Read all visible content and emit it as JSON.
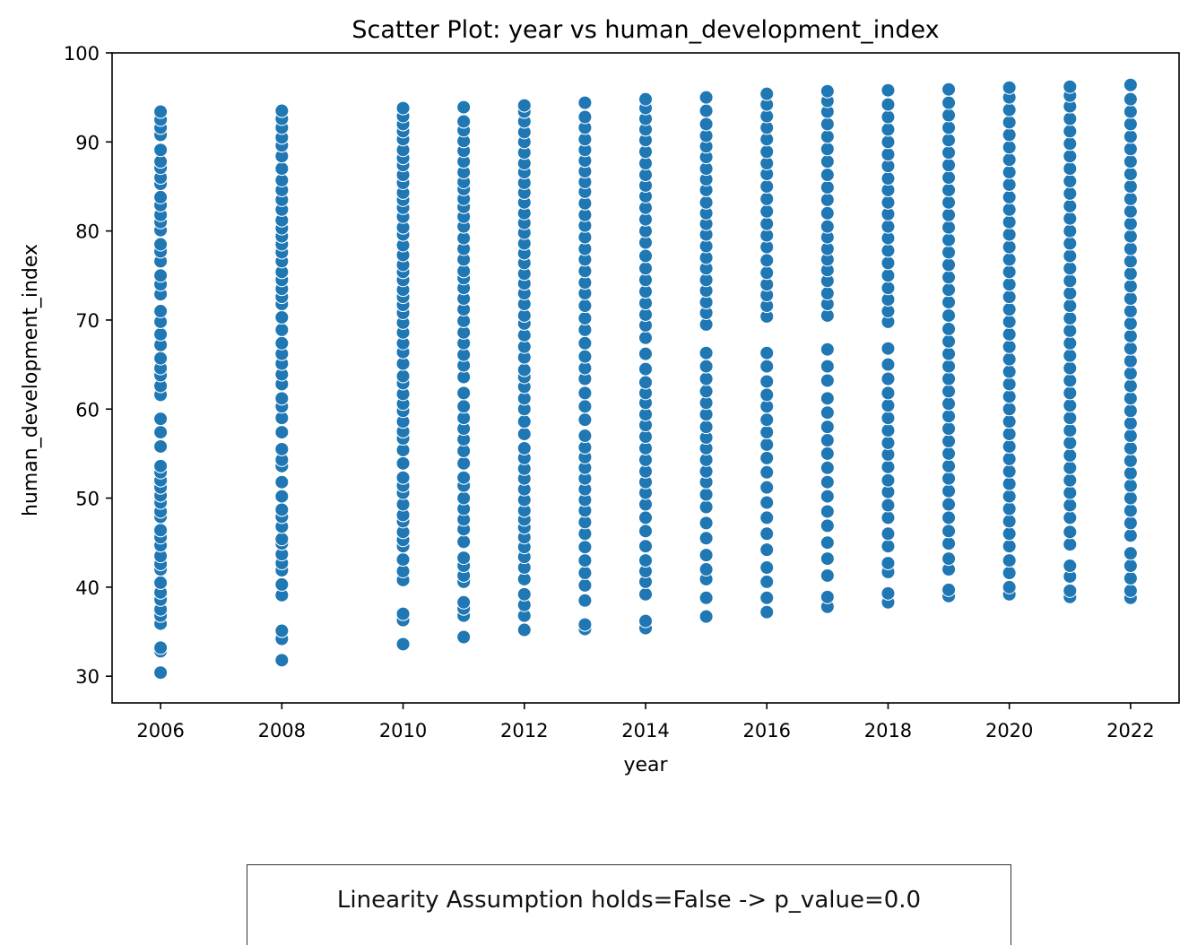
{
  "colors": {
    "point": "#1f77b4",
    "point_edge": "#ffffff",
    "axis": "#000000",
    "text": "#000000"
  },
  "chart_data": {
    "type": "scatter",
    "title": "Scatter Plot: year vs human_development_index",
    "xlabel": "year",
    "ylabel": "human_development_index",
    "xlim": [
      2005.2,
      2022.8
    ],
    "ylim": [
      27,
      100
    ],
    "xticks": [
      2006,
      2008,
      2010,
      2012,
      2014,
      2016,
      2018,
      2020,
      2022
    ],
    "yticks": [
      30,
      40,
      50,
      60,
      70,
      80,
      90,
      100
    ],
    "grid": false,
    "legend": "none",
    "series": [
      {
        "points_by_year": [
          {
            "x": 2006,
            "y": [
              30.4,
              32.8,
              33.2,
              35.9,
              36.8,
              37.5,
              38.6,
              39.4,
              40.5,
              42.0,
              42.6,
              43.5,
              44.7,
              45.6,
              46.4,
              47.9,
              48.5,
              49.5,
              50.3,
              51.2,
              52.0,
              52.9,
              53.6,
              55.8,
              57.4,
              58.9,
              61.6,
              62.6,
              63.8,
              64.6,
              65.7,
              67.2,
              68.4,
              69.8,
              71.0,
              72.9,
              74.0,
              75.0,
              76.6,
              77.7,
              78.5,
              80.1,
              81.0,
              81.8,
              82.9,
              83.8,
              85.3,
              86.0,
              87.1,
              87.8,
              89.1,
              90.8,
              91.6,
              92.5,
              93.4
            ]
          },
          {
            "x": 2008,
            "y": [
              31.8,
              34.2,
              35.1,
              39.1,
              40.3,
              41.9,
              42.7,
              43.7,
              44.9,
              45.4,
              46.8,
              47.9,
              48.7,
              50.2,
              51.8,
              53.6,
              54.3,
              55.5,
              57.4,
              59.0,
              60.3,
              61.2,
              62.8,
              63.9,
              65.1,
              66.2,
              67.4,
              68.9,
              70.3,
              71.8,
              72.6,
              73.5,
              74.5,
              75.4,
              76.6,
              77.6,
              78.5,
              79.4,
              80.3,
              81.2,
              82.4,
              83.5,
              84.6,
              85.7,
              87.0,
              88.4,
              89.6,
              90.5,
              91.6,
              92.6,
              93.5
            ]
          },
          {
            "x": 2010,
            "y": [
              33.6,
              36.3,
              37.0,
              40.8,
              41.8,
              43.1,
              44.6,
              45.3,
              46.2,
              47.4,
              48.1,
              49.3,
              50.6,
              51.4,
              52.3,
              53.9,
              55.4,
              56.7,
              57.5,
              58.6,
              59.8,
              60.6,
              61.7,
              62.9,
              63.7,
              65.1,
              66.4,
              67.4,
              68.6,
              69.7,
              70.8,
              71.7,
              72.6,
              73.4,
              74.5,
              75.4,
              76.2,
              77.3,
              78.4,
              79.6,
              80.4,
              81.6,
              82.6,
              83.5,
              84.3,
              85.4,
              86.3,
              87.4,
              88.2,
              89.1,
              90.3,
              91.2,
              92.0,
              92.9,
              93.8
            ]
          },
          {
            "x": 2011,
            "y": [
              34.4,
              36.8,
              37.6,
              38.3,
              40.6,
              41.3,
              42.4,
              43.3,
              45.1,
              46.5,
              47.6,
              48.8,
              50.0,
              51.4,
              52.3,
              53.9,
              55.3,
              56.6,
              57.8,
              59.0,
              60.3,
              61.8,
              63.6,
              64.9,
              66.1,
              67.4,
              68.6,
              69.9,
              71.2,
              72.4,
              73.6,
              74.7,
              75.5,
              76.8,
              78.0,
              79.2,
              80.5,
              81.6,
              82.7,
              83.6,
              84.7,
              85.5,
              86.6,
              87.8,
              89.0,
              90.1,
              91.3,
              92.3,
              93.9
            ]
          },
          {
            "x": 2012,
            "y": [
              35.2,
              36.8,
              38.0,
              39.2,
              40.9,
              42.2,
              43.4,
              44.5,
              45.6,
              46.7,
              47.6,
              48.6,
              49.8,
              51.0,
              52.2,
              53.3,
              54.5,
              55.6,
              57.2,
              58.6,
              60.0,
              61.2,
              62.5,
              63.6,
              64.4,
              65.8,
              67.0,
              68.3,
              69.6,
              70.5,
              71.8,
              73.0,
              74.1,
              75.2,
              76.4,
              77.5,
              78.6,
              79.8,
              80.9,
              82.0,
              83.2,
              84.3,
              85.4,
              86.6,
              87.6,
              88.8,
              90.0,
              91.1,
              92.3,
              93.4,
              94.1
            ]
          },
          {
            "x": 2013,
            "y": [
              35.3,
              35.8,
              38.5,
              40.2,
              41.6,
              43.0,
              44.5,
              46.0,
              47.3,
              48.6,
              49.8,
              51.0,
              52.2,
              53.4,
              54.6,
              55.7,
              57.0,
              58.8,
              60.3,
              61.8,
              63.4,
              64.6,
              65.9,
              67.4,
              68.9,
              70.2,
              71.6,
              73.0,
              74.2,
              75.5,
              76.8,
              78.0,
              79.3,
              80.6,
              81.8,
              83.1,
              84.4,
              85.5,
              86.7,
              87.9,
              89.1,
              90.3,
              91.6,
              92.8,
              94.4
            ]
          },
          {
            "x": 2014,
            "y": [
              35.4,
              36.2,
              39.2,
              40.6,
              41.8,
              43.0,
              44.6,
              46.3,
              47.8,
              49.3,
              50.6,
              51.8,
              53.0,
              54.3,
              55.6,
              56.9,
              58.2,
              59.4,
              60.7,
              61.8,
              63.0,
              64.5,
              66.2,
              68.0,
              69.4,
              70.6,
              71.9,
              73.2,
              74.5,
              75.8,
              77.2,
              78.7,
              80.0,
              81.3,
              82.6,
              83.9,
              85.1,
              86.3,
              87.6,
              88.9,
              90.2,
              91.4,
              92.6,
              93.8,
              94.8
            ]
          },
          {
            "x": 2015,
            "y": [
              36.7,
              38.8,
              40.9,
              42.0,
              43.6,
              45.5,
              47.2,
              49.0,
              50.4,
              51.8,
              53.0,
              54.3,
              55.6,
              56.8,
              58.0,
              59.4,
              60.7,
              62.0,
              63.4,
              64.8,
              66.3,
              69.5,
              70.8,
              72.0,
              73.3,
              74.5,
              75.8,
              77.0,
              78.3,
              79.6,
              80.8,
              82.0,
              83.2,
              84.6,
              85.8,
              87.0,
              88.3,
              89.5,
              90.7,
              92.0,
              93.5,
              95.0
            ]
          },
          {
            "x": 2016,
            "y": [
              37.2,
              38.8,
              40.6,
              42.2,
              44.2,
              46.0,
              47.8,
              49.5,
              51.2,
              52.9,
              54.5,
              56.0,
              57.4,
              58.8,
              60.3,
              61.6,
              63.1,
              64.8,
              66.3,
              70.4,
              71.6,
              72.8,
              74.0,
              75.3,
              76.7,
              78.2,
              79.5,
              80.8,
              82.2,
              83.6,
              85.0,
              86.4,
              87.6,
              88.9,
              90.3,
              91.6,
              92.9,
              94.2,
              95.4
            ]
          },
          {
            "x": 2017,
            "y": [
              37.8,
              38.9,
              41.3,
              43.2,
              45.0,
              46.9,
              48.5,
              50.2,
              51.8,
              53.4,
              55.0,
              56.5,
              58.0,
              59.6,
              61.2,
              63.2,
              64.8,
              66.7,
              70.5,
              71.8,
              73.0,
              74.4,
              75.6,
              76.8,
              78.0,
              79.3,
              80.5,
              82.0,
              83.5,
              84.9,
              86.3,
              87.8,
              89.2,
              90.6,
              92.0,
              93.4,
              94.6,
              95.7
            ]
          },
          {
            "x": 2018,
            "y": [
              38.3,
              39.3,
              41.7,
              42.7,
              44.6,
              46.0,
              47.8,
              49.2,
              50.7,
              52.0,
              53.5,
              54.9,
              56.2,
              57.6,
              59.0,
              60.4,
              61.8,
              63.4,
              65.0,
              66.8,
              69.8,
              71.0,
              72.3,
              73.6,
              75.0,
              76.4,
              77.8,
              79.2,
              80.5,
              81.9,
              83.2,
              84.6,
              85.9,
              87.3,
              88.6,
              90.0,
              91.4,
              92.8,
              94.2,
              95.8
            ]
          },
          {
            "x": 2019,
            "y": [
              39.0,
              39.7,
              42.0,
              43.2,
              44.9,
              46.3,
              47.8,
              49.3,
              50.8,
              52.2,
              53.6,
              55.0,
              56.4,
              57.8,
              59.2,
              60.6,
              62.0,
              63.4,
              64.8,
              66.2,
              67.6,
              69.0,
              70.5,
              72.0,
              73.4,
              74.8,
              76.2,
              77.6,
              79.0,
              80.4,
              81.8,
              83.2,
              84.6,
              86.0,
              87.4,
              88.8,
              90.2,
              91.6,
              93.0,
              94.4,
              95.9
            ]
          },
          {
            "x": 2020,
            "y": [
              39.2,
              40.0,
              41.6,
              43.0,
              44.6,
              46.0,
              47.4,
              48.8,
              50.2,
              51.6,
              53.0,
              54.4,
              55.8,
              57.2,
              58.6,
              60.0,
              61.4,
              62.8,
              64.2,
              65.6,
              67.0,
              68.4,
              69.8,
              71.2,
              72.6,
              74.0,
              75.4,
              76.8,
              78.2,
              79.6,
              81.0,
              82.4,
              83.8,
              85.2,
              86.6,
              88.0,
              89.4,
              90.8,
              92.2,
              93.6,
              95.0,
              96.1
            ]
          },
          {
            "x": 2021,
            "y": [
              38.9,
              39.6,
              41.2,
              42.4,
              44.8,
              46.2,
              47.8,
              49.2,
              50.6,
              52.0,
              53.4,
              54.8,
              56.2,
              57.6,
              59.0,
              60.4,
              61.8,
              63.2,
              64.6,
              66.0,
              67.4,
              68.8,
              70.2,
              71.6,
              73.0,
              74.4,
              75.8,
              77.2,
              78.6,
              80.0,
              81.4,
              82.8,
              84.2,
              85.6,
              87.0,
              88.4,
              89.8,
              91.2,
              92.6,
              94.0,
              95.2,
              96.2
            ]
          },
          {
            "x": 2022,
            "y": [
              38.8,
              39.6,
              41.0,
              42.4,
              43.8,
              45.8,
              47.2,
              48.6,
              50.0,
              51.4,
              52.8,
              54.2,
              55.6,
              57.0,
              58.4,
              59.8,
              61.2,
              62.6,
              64.0,
              65.4,
              66.8,
              68.2,
              69.6,
              71.0,
              72.4,
              73.8,
              75.2,
              76.6,
              78.0,
              79.4,
              80.8,
              82.2,
              83.6,
              85.0,
              86.4,
              87.8,
              89.2,
              90.6,
              92.0,
              93.4,
              94.8,
              96.4
            ]
          }
        ]
      }
    ]
  },
  "annotation": {
    "text": "Linearity Assumption holds=False -> p_value=0.0"
  }
}
